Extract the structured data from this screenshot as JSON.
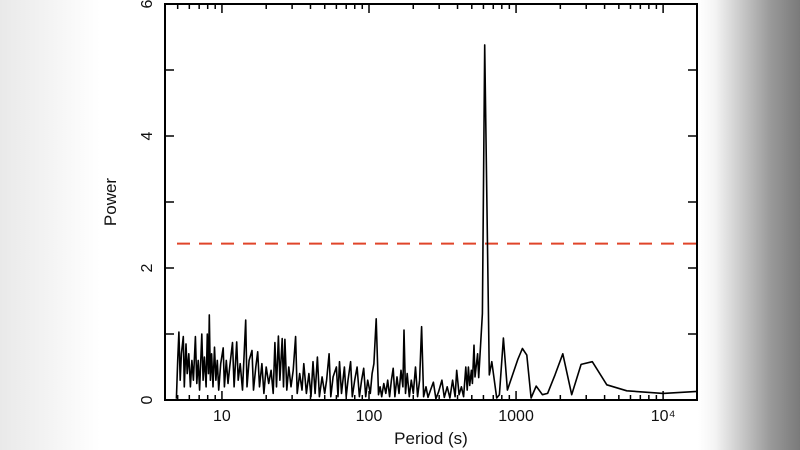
{
  "chart_data": {
    "type": "line",
    "xlabel": "Period (s)",
    "ylabel": "Power",
    "xscale": "log",
    "xlim": [
      4.1,
      17000
    ],
    "ylim": [
      0,
      6
    ],
    "xticks": [
      10,
      100,
      1000,
      10000
    ],
    "xtick_labels": [
      "10",
      "100",
      "1000",
      "10⁴"
    ],
    "yticks": [
      0,
      2,
      4,
      6
    ],
    "ytick_labels": [
      "0",
      "2",
      "4",
      "6"
    ],
    "grid": false,
    "threshold": {
      "value": 2.37,
      "color": "#e0452a",
      "style": "dashed"
    },
    "series_color": "#000000",
    "points": [
      [
        4.9,
        0.02
      ],
      [
        5.0,
        0.6
      ],
      [
        5.1,
        1.03
      ],
      [
        5.2,
        0.3
      ],
      [
        5.3,
        0.7
      ],
      [
        5.46,
        0.96
      ],
      [
        5.55,
        0.2
      ],
      [
        5.7,
        0.85
      ],
      [
        5.8,
        0.4
      ],
      [
        5.95,
        0.7
      ],
      [
        6.1,
        0.2
      ],
      [
        6.25,
        0.6
      ],
      [
        6.4,
        0.3
      ],
      [
        6.6,
        0.96
      ],
      [
        6.75,
        0.25
      ],
      [
        6.9,
        0.6
      ],
      [
        7.05,
        0.15
      ],
      [
        7.3,
        1.0
      ],
      [
        7.45,
        0.3
      ],
      [
        7.6,
        0.65
      ],
      [
        7.8,
        0.2
      ],
      [
        7.95,
        1.0
      ],
      [
        8.1,
        0.4
      ],
      [
        8.2,
        1.29
      ],
      [
        8.35,
        0.3
      ],
      [
        8.5,
        0.7
      ],
      [
        8.7,
        0.2
      ],
      [
        8.9,
        0.8
      ],
      [
        9.1,
        0.3
      ],
      [
        9.3,
        0.6
      ],
      [
        9.5,
        0.15
      ],
      [
        9.8,
        0.55
      ],
      [
        10.2,
        0.79
      ],
      [
        10.4,
        0.2
      ],
      [
        10.7,
        0.6
      ],
      [
        11.0,
        0.25
      ],
      [
        11.3,
        0.5
      ],
      [
        11.8,
        0.87
      ],
      [
        12.1,
        0.2
      ],
      [
        12.6,
        0.88
      ],
      [
        12.9,
        0.3
      ],
      [
        13.3,
        0.55
      ],
      [
        13.8,
        0.15
      ],
      [
        14.5,
        1.21
      ],
      [
        14.8,
        0.2
      ],
      [
        15.3,
        0.6
      ],
      [
        16.0,
        0.75
      ],
      [
        16.4,
        0.15
      ],
      [
        17.0,
        0.5
      ],
      [
        17.5,
        0.73
      ],
      [
        18.0,
        0.2
      ],
      [
        18.7,
        0.55
      ],
      [
        19.3,
        0.1
      ],
      [
        20.0,
        0.5
      ],
      [
        20.8,
        0.25
      ],
      [
        21.6,
        0.45
      ],
      [
        22.3,
        0.1
      ],
      [
        22.9,
        0.87
      ],
      [
        23.5,
        0.2
      ],
      [
        24.2,
        0.97
      ],
      [
        24.8,
        0.3
      ],
      [
        25.7,
        0.93
      ],
      [
        26.2,
        0.2
      ],
      [
        26.8,
        0.92
      ],
      [
        27.6,
        0.15
      ],
      [
        28.5,
        0.5
      ],
      [
        29.5,
        0.2
      ],
      [
        30.5,
        0.45
      ],
      [
        31.7,
        0.96
      ],
      [
        32.5,
        0.1
      ],
      [
        33.8,
        0.4
      ],
      [
        35,
        0.15
      ],
      [
        36,
        0.55
      ],
      [
        37.5,
        0.1
      ],
      [
        39,
        0.4
      ],
      [
        40.3,
        0.05
      ],
      [
        41.6,
        0.58
      ],
      [
        43,
        0.1
      ],
      [
        44.6,
        0.65
      ],
      [
        46,
        0.05
      ],
      [
        48,
        0.35
      ],
      [
        50,
        0.1
      ],
      [
        51.5,
        0.3
      ],
      [
        53.5,
        0.7
      ],
      [
        55,
        0.05
      ],
      [
        57,
        0.35
      ],
      [
        60,
        0.5
      ],
      [
        61.5,
        0.05
      ],
      [
        63,
        0.58
      ],
      [
        65,
        0.1
      ],
      [
        68,
        0.5
      ],
      [
        70,
        0.05
      ],
      [
        72,
        0.3
      ],
      [
        75,
        0.58
      ],
      [
        77,
        0.05
      ],
      [
        80,
        0.3
      ],
      [
        83,
        0.5
      ],
      [
        86,
        0.05
      ],
      [
        89,
        0.3
      ],
      [
        92,
        0.48
      ],
      [
        95,
        0.05
      ],
      [
        98,
        0.3
      ],
      [
        102,
        0.1
      ],
      [
        105,
        0.4
      ],
      [
        108,
        0.55
      ],
      [
        112,
        1.23
      ],
      [
        116,
        0.08
      ],
      [
        119,
        0.2
      ],
      [
        122,
        0.05
      ],
      [
        126,
        0.25
      ],
      [
        130,
        0.1
      ],
      [
        134,
        0.3
      ],
      [
        138,
        0.05
      ],
      [
        142,
        0.3
      ],
      [
        146,
        0.48
      ],
      [
        150,
        0.05
      ],
      [
        155,
        0.35
      ],
      [
        160,
        0.1
      ],
      [
        165,
        0.45
      ],
      [
        170,
        0.2
      ],
      [
        173,
        1.06
      ],
      [
        177,
        0.1
      ],
      [
        182,
        0.4
      ],
      [
        188,
        0.05
      ],
      [
        194,
        0.3
      ],
      [
        200,
        0.1
      ],
      [
        207,
        0.5
      ],
      [
        214,
        0.05
      ],
      [
        221,
        0.3
      ],
      [
        228,
        1.11
      ],
      [
        235,
        0.05
      ],
      [
        244,
        0.2
      ],
      [
        252,
        0.04
      ],
      [
        262,
        0.15
      ],
      [
        274,
        0.27
      ],
      [
        285,
        0.02
      ],
      [
        297,
        0.12
      ],
      [
        313,
        0.3
      ],
      [
        325,
        0.04
      ],
      [
        340,
        0.2
      ],
      [
        355,
        0.03
      ],
      [
        370,
        0.3
      ],
      [
        385,
        0.05
      ],
      [
        395,
        0.45
      ],
      [
        410,
        0.08
      ],
      [
        425,
        0.2
      ],
      [
        440,
        0.05
      ],
      [
        455,
        0.5
      ],
      [
        465,
        0.15
      ],
      [
        474,
        0.5
      ],
      [
        484,
        0.22
      ],
      [
        497,
        0.45
      ],
      [
        505,
        0.25
      ],
      [
        518,
        0.83
      ],
      [
        526,
        0.35
      ],
      [
        548,
        0.7
      ],
      [
        557,
        0.34
      ],
      [
        590,
        1.31
      ],
      [
        612,
        5.38
      ],
      [
        658,
        0.38
      ],
      [
        684,
        0.58
      ],
      [
        739,
        0.03
      ],
      [
        770,
        0.08
      ],
      [
        820,
        0.94
      ],
      [
        873,
        0.15
      ],
      [
        1026,
        0.61
      ],
      [
        1104,
        0.78
      ],
      [
        1183,
        0.68
      ],
      [
        1265,
        0.03
      ],
      [
        1370,
        0.21
      ],
      [
        1510,
        0.08
      ],
      [
        1640,
        0.1
      ],
      [
        1840,
        0.38
      ],
      [
        2080,
        0.7
      ],
      [
        2390,
        0.08
      ],
      [
        2770,
        0.54
      ],
      [
        3300,
        0.58
      ],
      [
        4140,
        0.23
      ],
      [
        5660,
        0.14
      ],
      [
        10000,
        0.1
      ],
      [
        17000,
        0.13
      ]
    ]
  }
}
